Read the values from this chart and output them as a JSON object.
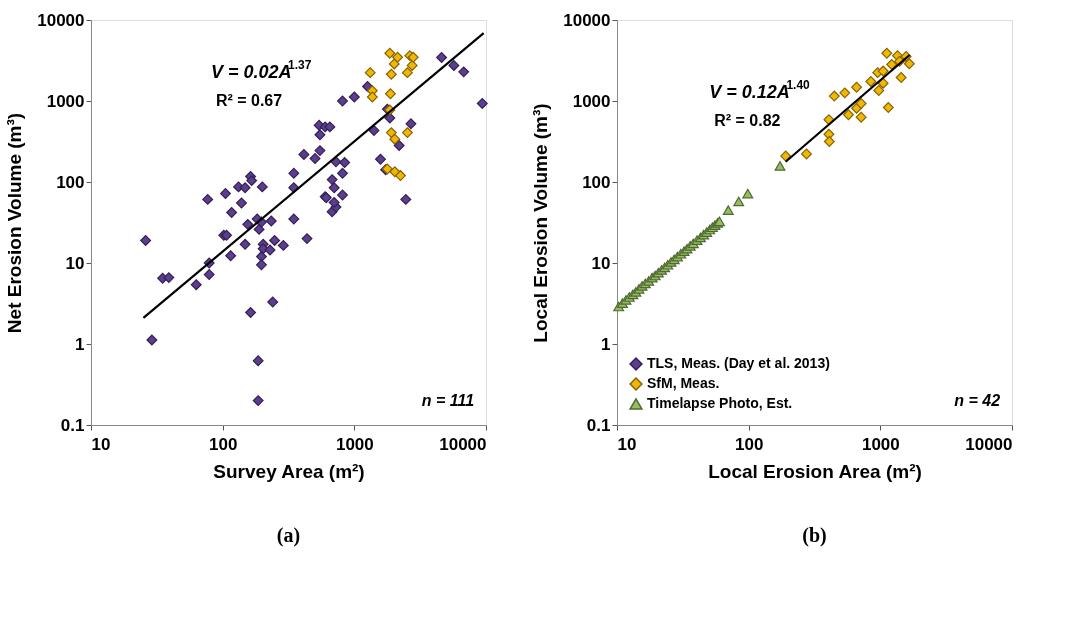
{
  "chart_data": [
    {
      "type": "scatter",
      "xlabel": "Survey Area (m²)",
      "ylabel": "Net Erosion Volume (m³)",
      "log": "xy",
      "grid": false,
      "legend": false,
      "xlim": [
        10,
        10000
      ],
      "xticks": [
        10,
        100,
        1000,
        10000
      ],
      "ylim": [
        0.1,
        10000
      ],
      "yticks": [
        0.1,
        1,
        10,
        100,
        1000,
        10000
      ],
      "annotations": [
        "V = 0.02A$^{1.37}$",
        "R² = 0.67",
        "n = 111",
        "(a)"
      ],
      "series": [
        {
          "marker": "diamond",
          "color": "#5c3d91",
          "x": [
            26,
            35,
            39,
            63,
            77,
            79,
            79,
            105,
            117,
            115,
            102,
            107,
            132,
            139,
            148,
            148,
            155,
            163,
            166,
            200,
            183,
            189,
            197,
            203,
            203,
            197,
            197,
            234,
            248,
            229,
            289,
            347,
            347,
            347,
            437,
            414,
            503,
            548,
            548,
            540,
            600,
            652,
            600,
            612,
            678,
            703,
            678,
            725,
            703,
            725,
            813,
            844,
            813,
            813,
            1000,
            1260,
            1410,
            1580,
            1730,
            1780,
            1860,
            2190,
            2460,
            2690,
            4600,
            5700,
            6770,
            9370,
            29,
            163,
            240,
            186,
            186
          ],
          "values": [
            19,
            6.5,
            6.6,
            5.4,
            61,
            10,
            7.2,
            72,
            42,
            12.3,
            22,
            22,
            87,
            55,
            85,
            17,
            30,
            117,
            104,
            87,
            35,
            26,
            32,
            17,
            15,
            12,
            9.5,
            33,
            19,
            14.5,
            16.5,
            35,
            128,
            85,
            20,
            219,
            195,
            244,
            383,
            501,
            479,
            479,
            66,
            64,
            107,
            85,
            43,
            49,
            56,
            178,
            128,
            174,
            69,
            1000,
            1120,
            1510,
            433,
            191,
            142,
            794,
            616,
            282,
            61,
            523,
            3440,
            2750,
            2290,
            933,
            1.12,
            2.45,
            3.3,
            0.62,
            0.2
          ]
        },
        {
          "marker": "diamond",
          "color": "#f2b705",
          "x": [
            1320,
            1370,
            1370,
            1860,
            1910,
            1880,
            2010,
            2130,
            2640,
            2750,
            2530,
            1910,
            2030,
            2530,
            1780,
            2030,
            2240,
            1860,
            2800
          ],
          "values": [
            2240,
            1340,
            1120,
            3890,
            2140,
            1230,
            2870,
            3470,
            3630,
            2750,
            2240,
            407,
            338,
            407,
            145,
            134,
            120,
            776,
            3470
          ]
        },
        {
          "type": "line",
          "color": "#000000",
          "x": [
            25,
            9600
          ],
          "values": [
            2.1,
            6900
          ]
        }
      ]
    },
    {
      "type": "scatter",
      "xlabel": "Local Erosion Area (m²)",
      "ylabel": "Local Erosion Volume (m³)",
      "log": "xy",
      "grid": false,
      "legend": "bottom left",
      "xlim": [
        10,
        10000
      ],
      "xticks": [
        10,
        100,
        1000,
        10000
      ],
      "ylim": [
        0.1,
        10000
      ],
      "yticks": [
        0.1,
        1,
        10,
        100,
        1000,
        10000
      ],
      "annotations": [
        "V = 0.12A$^{1.40}$",
        "R² = 0.82",
        "n = 42",
        "(b)"
      ],
      "series": [
        {
          "marker": "diamond",
          "name": "TLS, Meas. (Day et al. 2013)",
          "color": "#5c3d91"
        },
        {
          "marker": "diamond",
          "name": "SfM, Meas.",
          "color": "#f2b705",
          "x": [
            191,
            275,
            407,
            410,
            407,
            447,
            537,
            573,
            660,
            660,
            715,
            715,
            817,
            955,
            973,
            1050,
            1120,
            1150,
            1220,
            1350,
            1400,
            1440,
            1570,
            1660,
            847,
            1050
          ],
          "values": [
            209,
            222,
            389,
            316,
            588,
            1150,
            1260,
            676,
            1480,
            813,
            631,
            933,
            null,
            2240,
            1350,
            2340,
            3890,
            832,
            2820,
            3630,
            3090,
            1950,
            3550,
            2880,
            1740,
            1660
          ]
        },
        {
          "marker": "triangle",
          "name": "Timelapse Photo, Est.",
          "color": "#93bf5f",
          "x": [
            10.3,
            11,
            11.7,
            12.4,
            13.2,
            13.9,
            14.7,
            15.5,
            16.4,
            17.4,
            18.5,
            19.5,
            20.6,
            21.8,
            23,
            24.3,
            25.7,
            27.2,
            28.8,
            30.5,
            32.3,
            34,
            36,
            38,
            40.5,
            43,
            45.5,
            48,
            50.6,
            53,
            55.5,
            58,
            60,
            70,
            84,
            98.5,
            173
          ],
          "values": [
            2.9,
            3.2,
            3.5,
            3.8,
            4.1,
            4.4,
            4.8,
            5.2,
            5.6,
            6.0,
            6.6,
            7.0,
            7.6,
            8.2,
            8.8,
            9.5,
            10.3,
            11.1,
            12.0,
            13.0,
            14.0,
            15.0,
            16.3,
            17.5,
            19.1,
            20.7,
            22.4,
            24.1,
            25.9,
            27.6,
            29.4,
            31.2,
            32.7,
            45,
            57.5,
            72,
            158
          ]
        },
        {
          "type": "line",
          "color": "#000000",
          "x": [
            191,
            1670
          ],
          "values": [
            178,
            3700
          ]
        }
      ]
    }
  ]
}
